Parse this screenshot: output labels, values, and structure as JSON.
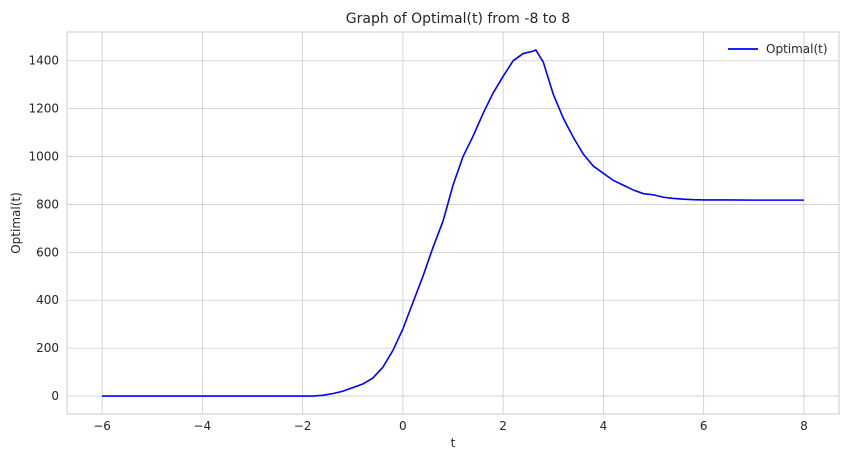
{
  "chart_data": {
    "type": "line",
    "title": "Graph of Optimal(t) from -8 to 8",
    "xlabel": "t",
    "ylabel": "Optimal(t)",
    "xlim": [
      -6.7,
      8.7
    ],
    "ylim": [
      -75,
      1520
    ],
    "xticks": [
      -6,
      -4,
      -2,
      0,
      2,
      4,
      6,
      8
    ],
    "yticks": [
      0,
      200,
      400,
      600,
      800,
      1000,
      1200,
      1400
    ],
    "grid": true,
    "legend_position": "top-right",
    "series": [
      {
        "name": "Optimal(t)",
        "color": "#0000ff",
        "x": [
          -6,
          -5.5,
          -5,
          -4.5,
          -4,
          -3.5,
          -3,
          -2.5,
          -2,
          -1.8,
          -1.6,
          -1.4,
          -1.2,
          -1.0,
          -0.8,
          -0.6,
          -0.4,
          -0.2,
          0,
          0.2,
          0.4,
          0.6,
          0.8,
          1.0,
          1.2,
          1.4,
          1.6,
          1.8,
          2.0,
          2.2,
          2.4,
          2.6,
          2.65,
          2.8,
          3.0,
          3.2,
          3.4,
          3.6,
          3.8,
          4.0,
          4.2,
          4.4,
          4.6,
          4.8,
          5.0,
          5.2,
          5.4,
          5.6,
          5.8,
          6.0,
          6.5,
          7.0,
          7.5,
          8.0
        ],
        "y": [
          0,
          0,
          0,
          0,
          0,
          0,
          0,
          0,
          0,
          0,
          3,
          10,
          20,
          35,
          50,
          75,
          120,
          190,
          280,
          390,
          500,
          620,
          730,
          880,
          1000,
          1085,
          1180,
          1265,
          1335,
          1400,
          1430,
          1440,
          1445,
          1395,
          1260,
          1160,
          1080,
          1010,
          960,
          930,
          900,
          880,
          860,
          845,
          840,
          830,
          825,
          822,
          820,
          819,
          819,
          818,
          818,
          818
        ]
      }
    ]
  }
}
